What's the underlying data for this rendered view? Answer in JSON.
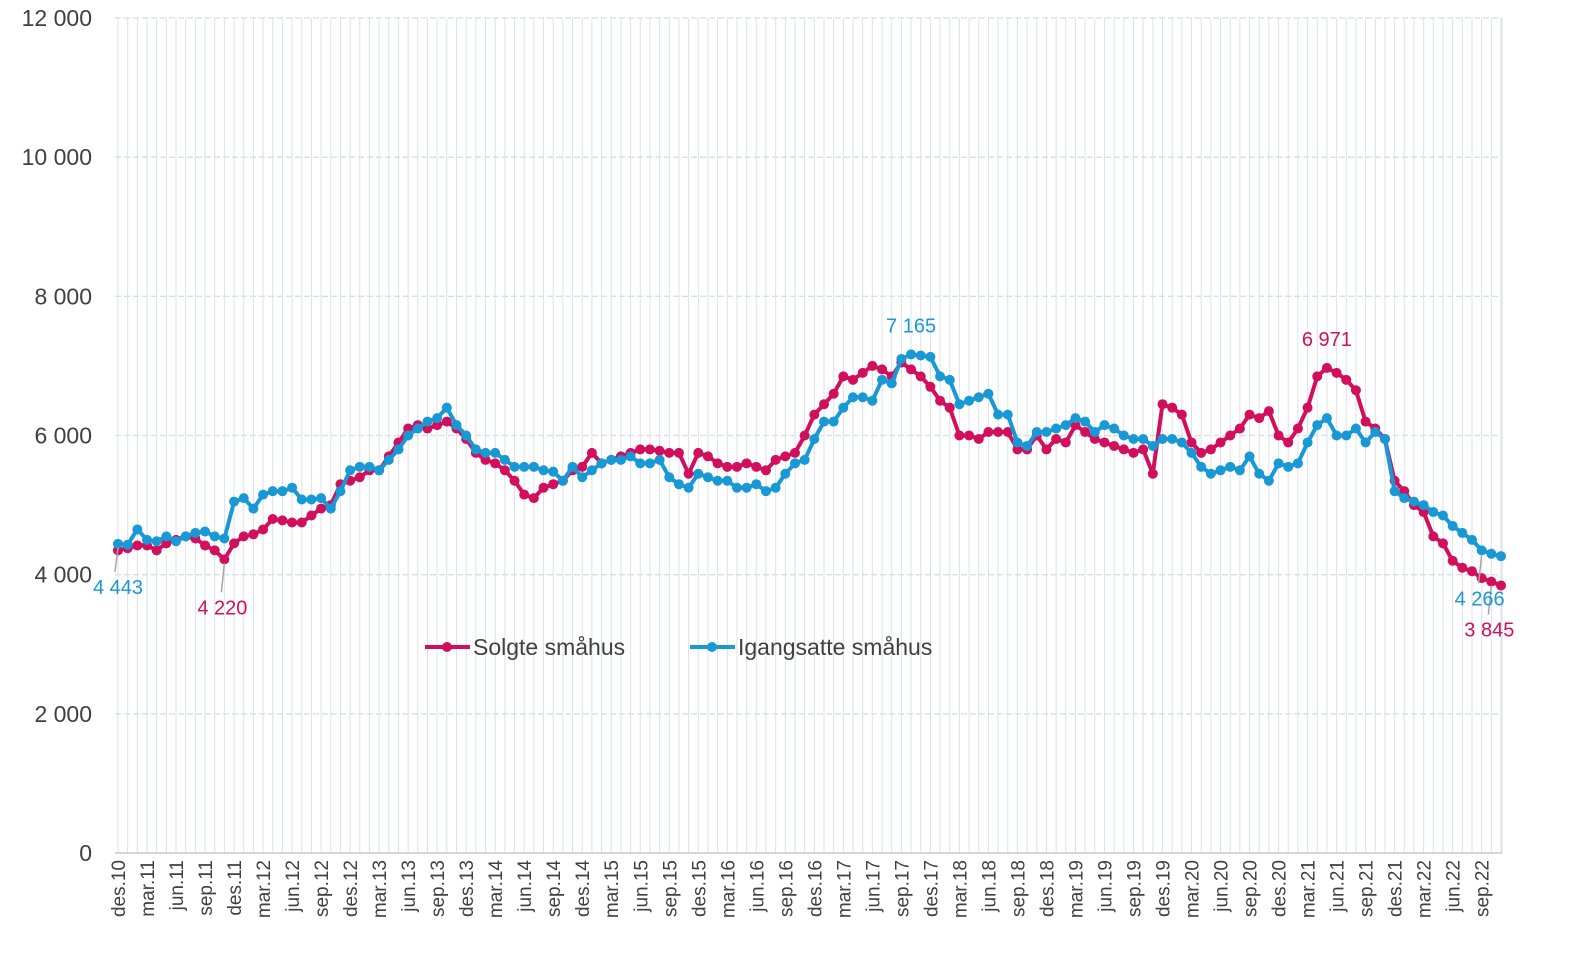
{
  "chart_data": {
    "type": "line",
    "categories": [
      "des.10",
      null,
      null,
      "mar.11",
      null,
      null,
      "jun.11",
      null,
      null,
      "sep.11",
      null,
      null,
      "des.11",
      null,
      null,
      "mar.12",
      null,
      null,
      "jun.12",
      null,
      null,
      "sep.12",
      null,
      null,
      "des.12",
      null,
      null,
      "mar.13",
      null,
      null,
      "jun.13",
      null,
      null,
      "sep.13",
      null,
      null,
      "des.13",
      null,
      null,
      "mar.14",
      null,
      null,
      "jun.14",
      null,
      null,
      "sep.14",
      null,
      null,
      "des.14",
      null,
      null,
      "mar.15",
      null,
      null,
      "jun.15",
      null,
      null,
      "sep.15",
      null,
      null,
      "des.15",
      null,
      null,
      "mar.16",
      null,
      null,
      "jun.16",
      null,
      null,
      "sep.16",
      null,
      null,
      "des.16",
      null,
      null,
      "mar.17",
      null,
      null,
      "jun.17",
      null,
      null,
      "sep.17",
      null,
      null,
      "des.17",
      null,
      null,
      "mar.18",
      null,
      null,
      "jun.18",
      null,
      null,
      "sep.18",
      null,
      null,
      "des.18",
      null,
      null,
      "mar.19",
      null,
      null,
      "jun.19",
      null,
      null,
      "sep.19",
      null,
      null,
      "des.19",
      null,
      null,
      "mar.20",
      null,
      null,
      "jun.20",
      null,
      null,
      "sep.20",
      null,
      null,
      "des.20",
      null,
      null,
      "mar.21",
      null,
      null,
      "jun.21",
      null,
      null,
      "sep.21",
      null,
      null,
      "des.21",
      null,
      null,
      "mar.22",
      null,
      null,
      "jun.22",
      null,
      null,
      "sep.22",
      null,
      null
    ],
    "series": [
      {
        "name": "Solgte småhus",
        "color": "#d10f5c",
        "values": [
          4350,
          4380,
          4420,
          4420,
          4350,
          4450,
          4500,
          4550,
          4520,
          4420,
          4350,
          4220,
          4450,
          4550,
          4580,
          4650,
          4800,
          4780,
          4750,
          4750,
          4850,
          4950,
          5000,
          5300,
          5350,
          5400,
          5500,
          5500,
          5700,
          5900,
          6100,
          6150,
          6100,
          6150,
          6200,
          6100,
          5950,
          5750,
          5650,
          5600,
          5500,
          5350,
          5150,
          5100,
          5250,
          5300,
          5350,
          5500,
          5550,
          5750,
          5600,
          5650,
          5700,
          5750,
          5800,
          5800,
          5780,
          5750,
          5750,
          5450,
          5750,
          5700,
          5600,
          5550,
          5550,
          5600,
          5550,
          5500,
          5650,
          5700,
          5750,
          6000,
          6300,
          6450,
          6600,
          6850,
          6800,
          6900,
          7000,
          6950,
          6850,
          7050,
          6950,
          6850,
          6700,
          6500,
          6400,
          6000,
          6000,
          5950,
          6050,
          6050,
          6050,
          5800,
          5800,
          6000,
          5800,
          5950,
          5900,
          6150,
          6050,
          5950,
          5900,
          5850,
          5800,
          5750,
          5800,
          5450,
          6450,
          6400,
          6300,
          5900,
          5750,
          5800,
          5900,
          6000,
          6100,
          6300,
          6250,
          6350,
          6000,
          5900,
          6100,
          6400,
          6850,
          6971,
          6900,
          6800,
          6650,
          6200,
          6100,
          5950,
          5350,
          5200,
          5000,
          4900,
          4550,
          4450,
          4200,
          4100,
          4050,
          3950,
          3900,
          3845
        ],
        "value_labels": [
          null,
          null,
          null,
          null,
          null,
          null,
          null,
          null,
          null,
          null,
          null,
          "4 220",
          null,
          null,
          null,
          null,
          null,
          null,
          null,
          null,
          null,
          null,
          null,
          null,
          null,
          null,
          null,
          null,
          null,
          null,
          null,
          null,
          null,
          null,
          null,
          null,
          null,
          null,
          null,
          null,
          null,
          null,
          null,
          null,
          null,
          null,
          null,
          null,
          null,
          null,
          null,
          null,
          null,
          null,
          null,
          null,
          null,
          null,
          null,
          null,
          null,
          null,
          null,
          null,
          null,
          null,
          null,
          null,
          null,
          null,
          null,
          null,
          null,
          null,
          null,
          null,
          null,
          null,
          null,
          null,
          null,
          null,
          null,
          null,
          null,
          null,
          null,
          null,
          null,
          null,
          null,
          null,
          null,
          null,
          null,
          null,
          null,
          null,
          null,
          null,
          null,
          null,
          null,
          null,
          null,
          null,
          null,
          null,
          null,
          null,
          null,
          null,
          null,
          null,
          null,
          null,
          null,
          null,
          null,
          null,
          null,
          null,
          null,
          null,
          null,
          "6 971",
          null,
          null,
          null,
          null,
          null,
          null,
          null,
          null,
          null,
          null,
          null,
          null,
          null,
          null,
          null,
          null,
          "3 845"
        ]
      },
      {
        "name": "Igangsatte småhus",
        "color": "#1898d5",
        "values": [
          4443,
          4430,
          4650,
          4500,
          4480,
          4550,
          4480,
          4550,
          4600,
          4620,
          4550,
          4520,
          5050,
          5100,
          4950,
          5150,
          5200,
          5200,
          5250,
          5080,
          5080,
          5100,
          4950,
          5200,
          5500,
          5550,
          5550,
          5500,
          5650,
          5800,
          6000,
          6100,
          6200,
          6250,
          6400,
          6150,
          6000,
          5800,
          5750,
          5750,
          5650,
          5550,
          5550,
          5550,
          5500,
          5480,
          5350,
          5550,
          5400,
          5500,
          5600,
          5650,
          5650,
          5700,
          5600,
          5600,
          5650,
          5400,
          5300,
          5250,
          5450,
          5400,
          5350,
          5350,
          5250,
          5250,
          5300,
          5200,
          5250,
          5450,
          5600,
          5650,
          5950,
          6200,
          6200,
          6400,
          6550,
          6550,
          6500,
          6800,
          6750,
          7100,
          7165,
          7150,
          7130,
          6850,
          6800,
          6450,
          6500,
          6550,
          6600,
          6300,
          6300,
          5900,
          5850,
          6050,
          6050,
          6100,
          6150,
          6250,
          6200,
          6050,
          6150,
          6100,
          6000,
          5950,
          5950,
          5850,
          5950,
          5950,
          5900,
          5750,
          5550,
          5450,
          5500,
          5550,
          5500,
          5700,
          5450,
          5350,
          5600,
          5550,
          5600,
          5900,
          6150,
          6250,
          6000,
          6000,
          6100,
          5900,
          6050,
          5950,
          5200,
          5100,
          5050,
          5000,
          4900,
          4850,
          4700,
          4600,
          4500,
          4350,
          4300,
          4266
        ],
        "value_labels": [
          "4 443",
          null,
          null,
          null,
          null,
          null,
          null,
          null,
          null,
          null,
          null,
          null,
          null,
          null,
          null,
          null,
          null,
          null,
          null,
          null,
          null,
          null,
          null,
          null,
          null,
          null,
          null,
          null,
          null,
          null,
          null,
          null,
          null,
          null,
          null,
          null,
          null,
          null,
          null,
          null,
          null,
          null,
          null,
          null,
          null,
          null,
          null,
          null,
          null,
          null,
          null,
          null,
          null,
          null,
          null,
          null,
          null,
          null,
          null,
          null,
          null,
          null,
          null,
          null,
          null,
          null,
          null,
          null,
          null,
          null,
          null,
          null,
          null,
          null,
          null,
          null,
          null,
          null,
          null,
          null,
          null,
          null,
          "7 165",
          null,
          null,
          null,
          null,
          null,
          null,
          null,
          null,
          null,
          null,
          null,
          null,
          null,
          null,
          null,
          null,
          null,
          null,
          null,
          null,
          null,
          null,
          null,
          null,
          null,
          null,
          null,
          null,
          null,
          null,
          null,
          null,
          null,
          null,
          null,
          null,
          null,
          null,
          null,
          null,
          null,
          null,
          null,
          null,
          null,
          null,
          null,
          null,
          null,
          null,
          null,
          null,
          null,
          null,
          null,
          null,
          null,
          null,
          "4 266"
        ]
      }
    ],
    "ylim": [
      0,
      12000
    ],
    "yticks": [
      0,
      {
        "value": 2000,
        "label": "2 000"
      },
      {
        "value": 4000,
        "label": "4 000"
      },
      {
        "value": 6000,
        "label": "6 000"
      },
      {
        "value": 8000,
        "label": "8 000"
      },
      {
        "value": 10000,
        "label": "10 000"
      },
      {
        "value": 12000,
        "label": "12 000"
      }
    ],
    "grid": true,
    "legend": "center"
  }
}
